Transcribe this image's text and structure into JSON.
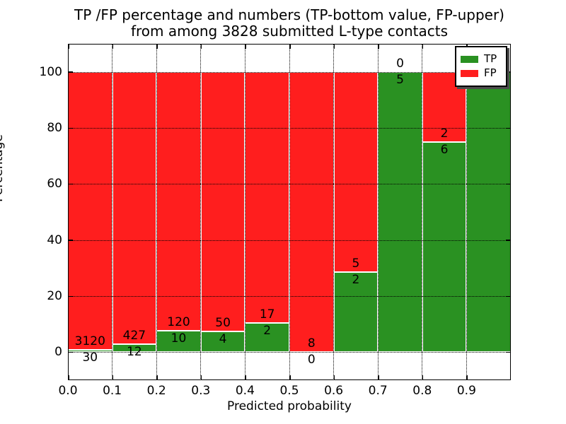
{
  "title": {
    "line1": "TP /FP percentage and numbers (TP-bottom value, FP-upper)",
    "line2": "from among 3828 submitted L-type contacts"
  },
  "chart_data": {
    "type": "bar",
    "stacked": true,
    "orientation": "vertical",
    "title": "TP /FP percentage and numbers (TP-bottom value, FP-upper)\nfrom among 3828 submitted L-type contacts",
    "xlabel": "Predicted probability",
    "ylabel": "Percentage",
    "total_contacts": 3828,
    "bin_edges": [
      0.0,
      0.1,
      0.2,
      0.3,
      0.4,
      0.5,
      0.6,
      0.7,
      0.8,
      0.9,
      1.0
    ],
    "x_tick_labels": [
      "0.0",
      "0.1",
      "0.2",
      "0.3",
      "0.4",
      "0.5",
      "0.6",
      "0.7",
      "0.8",
      "0.9"
    ],
    "y_tick_values": [
      0,
      20,
      40,
      60,
      80,
      100
    ],
    "y_tick_labels": [
      "0",
      "20",
      "40",
      "60",
      "80",
      "100"
    ],
    "xlim": [
      0.0,
      1.0
    ],
    "ylim": [
      -10,
      110
    ],
    "grid": "dotted",
    "series": [
      {
        "name": "TP",
        "color": "#2a9122",
        "counts": [
          30,
          12,
          10,
          4,
          2,
          0,
          2,
          5,
          6,
          8
        ]
      },
      {
        "name": "FP",
        "color": "#ff1e1e",
        "counts": [
          3120,
          427,
          120,
          50,
          17,
          8,
          5,
          0,
          2,
          0
        ]
      }
    ],
    "tp_percent": [
      0.95,
      2.73,
      7.69,
      7.41,
      10.53,
      0.0,
      28.57,
      100.0,
      75.0,
      100.0
    ],
    "fp_percent": [
      99.05,
      97.27,
      92.31,
      92.59,
      89.47,
      100.0,
      71.43,
      0.0,
      25.0,
      0.0
    ],
    "legend": {
      "position": "upper right",
      "entries": [
        {
          "label": "TP",
          "color": "#2a9122"
        },
        {
          "label": "FP",
          "color": "#ff1e1e"
        }
      ]
    }
  }
}
